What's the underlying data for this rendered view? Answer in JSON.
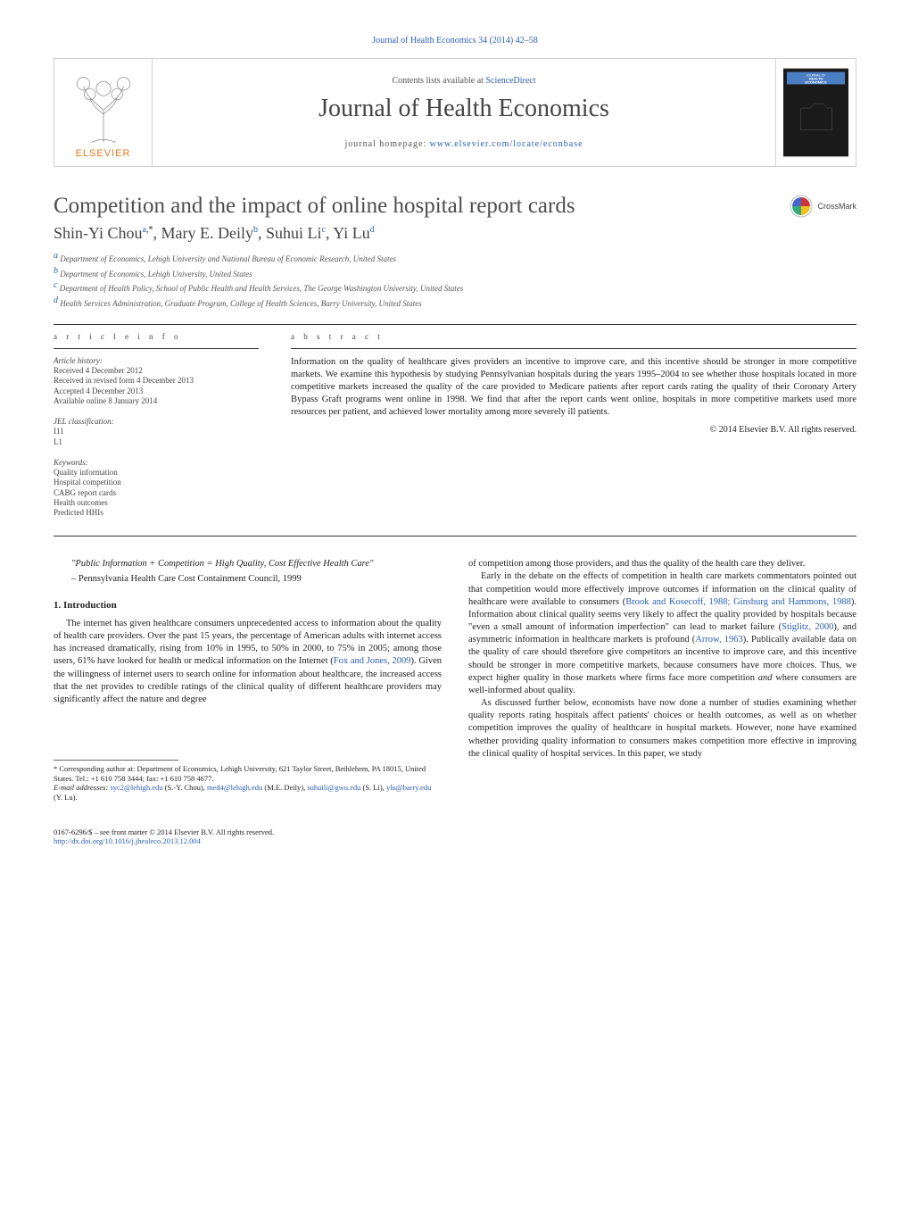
{
  "journal_ref": {
    "text": "Journal of Health Economics 34 (2014) 42–58",
    "color": "#2b5fb0"
  },
  "header": {
    "publisher": "ELSEVIER",
    "publisher_color": "#e6781e",
    "contents_prefix": "Contents lists available at ",
    "contents_link": "ScienceDirect",
    "journal_name": "Journal of Health Economics",
    "homepage_prefix": "journal homepage: ",
    "homepage_url": "www.elsevier.com/locate/econbase",
    "cover_title1": "JOURNAL OF",
    "cover_title2": "HEALTH",
    "cover_title3": "ECONOMICS",
    "cover_bg": "#1a1a1a",
    "cover_accent": "#4a7fc4"
  },
  "title": "Competition and the impact of online hospital report cards",
  "crossmark_label": "CrossMark",
  "authors_html": "Shin-Yi Chou<sup data-bind-attr='style:colors.sup'>a,</sup><sup class='black'>*</sup>, Mary E. Deily<sup>b</sup>, Suhui Li<sup>c</sup>, Yi Lu<sup>d</sup>",
  "authors": [
    {
      "name": "Shin-Yi Chou",
      "mark": "a,*"
    },
    {
      "name": "Mary E. Deily",
      "mark": "b"
    },
    {
      "name": "Suhui Li",
      "mark": "c"
    },
    {
      "name": "Yi Lu",
      "mark": "d"
    }
  ],
  "affiliations": [
    {
      "mark": "a",
      "text": "Department of Economics, Lehigh University and National Bureau of Economic Research, United States"
    },
    {
      "mark": "b",
      "text": "Department of Economics, Lehigh University, United States"
    },
    {
      "mark": "c",
      "text": "Department of Health Policy, School of Public Health and Health Services, The George Washington University, United States"
    },
    {
      "mark": "d",
      "text": "Health Services Administration, Graduate Program, College of Health Sciences, Barry University, United States"
    }
  ],
  "article_info": {
    "label": "a r t i c l e    i n f o",
    "history_label": "Article history:",
    "history": [
      "Received 4 December 2012",
      "Received in revised form 4 December 2013",
      "Accepted 4 December 2013",
      "Available online 8 January 2014"
    ],
    "jel_label": "JEL classification:",
    "jel": [
      "I11",
      "L1"
    ],
    "keywords_label": "Keywords:",
    "keywords": [
      "Quality information",
      "Hospital competition",
      "CABG report cards",
      "Health outcomes",
      "Predicted HHIs"
    ]
  },
  "abstract": {
    "label": "a b s t r a c t",
    "body": "Information on the quality of healthcare gives providers an incentive to improve care, and this incentive should be stronger in more competitive markets. We examine this hypothesis by studying Pennsylvanian hospitals during the years 1995–2004 to see whether those hospitals located in more competitive markets increased the quality of the care provided to Medicare patients after report cards rating the quality of their Coronary Artery Bypass Graft programs went online in 1998. We find that after the report cards went online, hospitals in more competitive markets used more resources per patient, and achieved lower mortality among more severely ill patients.",
    "copyright": "© 2014 Elsevier B.V. All rights reserved."
  },
  "epigraph": {
    "quote": "\"Public Information + Competition = High Quality, Cost Effective Health Care\"",
    "source": "– Pennsylvania Health Care Cost Containment Council, 1999"
  },
  "section1": {
    "heading": "1. Introduction",
    "paras_col1": [
      "The internet has given healthcare consumers unprecedented access to information about the quality of health care providers. Over the past 15 years, the percentage of American adults with internet access has increased dramatically, rising from 10% in 1995, to 50% in 2000, to 75% in 2005; among those users, 61% have looked for health or medical information on the Internet (<span class='cite'>Fox and Jones, 2009</span>). Given the willingness of internet users to search online for information about healthcare, the increased access that the net provides to credible ratings of the clinical quality of different healthcare providers may significantly affect the nature and degree"
    ],
    "paras_col2": [
      "of competition among those providers, and thus the quality of the health care they deliver.",
      "Early in the debate on the effects of competition in health care markets commentators pointed out that competition would more effectively improve outcomes if information on the clinical quality of healthcare were available to consumers (<span class='cite'>Brook and Kosecoff, 1988; Ginsburg and Hammons, 1988</span>). Information about clinical quality seems very likely to affect the quality provided by hospitals because \"even a small amount of information imperfection\" can lead to market failure (<span class='cite'>Stiglitz, 2000</span>), and asymmetric information in healthcare markets is profound (<span class='cite'>Arrow, 1963</span>). Publically available data on the quality of care should therefore give competitors an incentive to improve care, and this incentive should be stronger in more competitive markets, because consumers have more choices. Thus, we expect higher quality in those markets where firms face more competition <em>and</em> where consumers are well-informed about quality.",
      "As discussed further below, economists have now done a number of studies examining whether quality reports rating hospitals affect patients' choices or health outcomes, as well as on whether competition improves the quality of healthcare in hospital markets. However, none have examined whether providing quality information to consumers makes competition more effective in improving the clinical quality of hospital services. In this paper, we study"
    ]
  },
  "footnotes": {
    "corr": "* Corresponding author at: Department of Economics, Lehigh University, 621 Taylor Street, Bethlehem, PA 18015, United States. Tel.: +1 610 758 3444; fax: +1 610 758 4677.",
    "emails_label": "E-mail addresses: ",
    "emails": [
      {
        "addr": "syc2@lehigh.edu",
        "who": "(S.-Y. Chou)"
      },
      {
        "addr": "med4@lehigh.edu",
        "who": "(M.E. Deily)"
      },
      {
        "addr": "suhuili@gwu.edu",
        "who": "(S. Li)"
      },
      {
        "addr": "ylu@barry.edu",
        "who": "(Y. Lu)"
      }
    ]
  },
  "doi": {
    "line1": "0167-6296/$ – see front matter © 2014 Elsevier B.V. All rights reserved.",
    "url": "http://dx.doi.org/10.1016/j.jhealeco.2013.12.004"
  },
  "colors": {
    "link": "#2b5fb0",
    "text": "#222222",
    "border": "#d0d0d0",
    "sup": "color:#2b5fb0"
  }
}
